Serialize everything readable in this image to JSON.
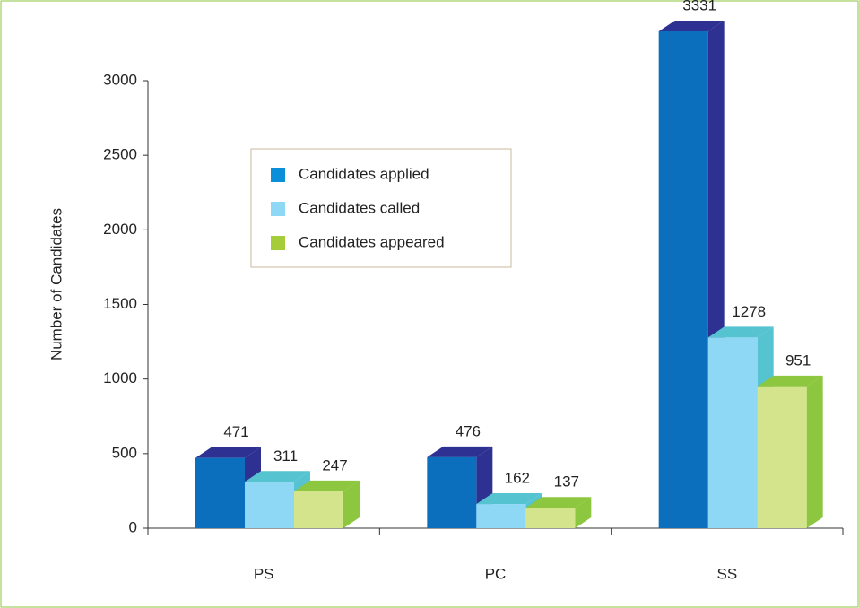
{
  "chart_data": {
    "type": "bar3d",
    "y_label": "Number of Candidates",
    "categories": [
      "PS",
      "PC",
      "SS"
    ],
    "series": [
      {
        "name": "Candidates applied",
        "color": "#0b6fbd",
        "side_color": "#2e3192",
        "legend_color": "#0a8fd8",
        "values": [
          471,
          476,
          3331
        ]
      },
      {
        "name": "Candidates called",
        "color": "#8fd8f5",
        "side_color": "#55c3d0",
        "legend_color": "#8fd8f5",
        "values": [
          311,
          162,
          1278
        ]
      },
      {
        "name": "Candidates appeared",
        "color": "#d4e48c",
        "side_color": "#8dc63f",
        "legend_color": "#a5cd39",
        "values": [
          247,
          137,
          951
        ]
      }
    ],
    "ylim": [
      0,
      3000
    ],
    "yticks": [
      0,
      500,
      1000,
      1500,
      2000,
      2500,
      3000
    ]
  }
}
